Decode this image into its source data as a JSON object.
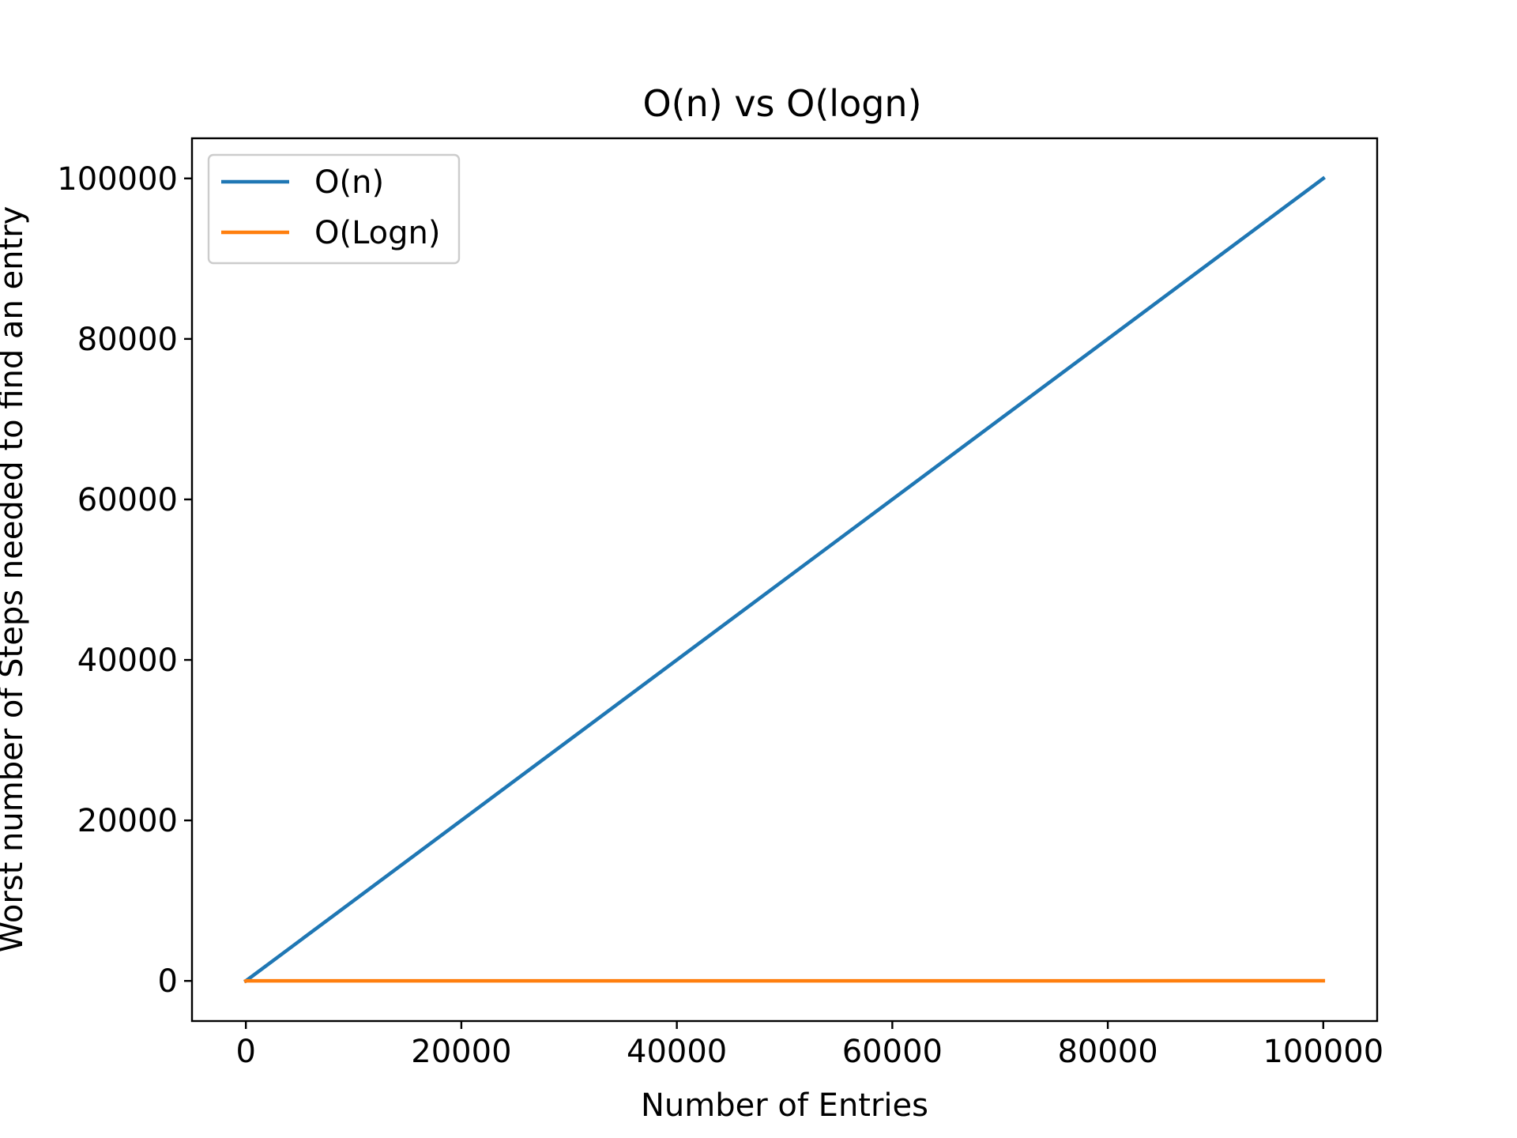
{
  "chart_data": {
    "type": "line",
    "title": "O(n) vs O(logn)",
    "xlabel": "Number of Entries",
    "ylabel": "Worst number of Steps needed to find an entry",
    "xlim": [
      -5000,
      105000
    ],
    "ylim": [
      -5000,
      105000
    ],
    "xticks": [
      0,
      20000,
      40000,
      60000,
      80000,
      100000
    ],
    "xtick_labels": [
      "0",
      "20000",
      "40000",
      "60000",
      "80000",
      "100000"
    ],
    "yticks": [
      0,
      20000,
      40000,
      60000,
      80000,
      100000
    ],
    "ytick_labels": [
      "0",
      "20000",
      "40000",
      "60000",
      "80000",
      "100000"
    ],
    "grid": false,
    "legend_position": "top-left",
    "series": [
      {
        "name": "O(n)",
        "color": "#1f77b4",
        "x": [
          1,
          100000
        ],
        "y": [
          1,
          100000
        ]
      },
      {
        "name": "O(Logn)",
        "color": "#ff7f0e",
        "x": [
          1,
          10,
          100,
          1000,
          10000,
          50000,
          100000
        ],
        "y": [
          0,
          3.3,
          6.6,
          10,
          13.3,
          15.6,
          16.6
        ]
      }
    ]
  }
}
